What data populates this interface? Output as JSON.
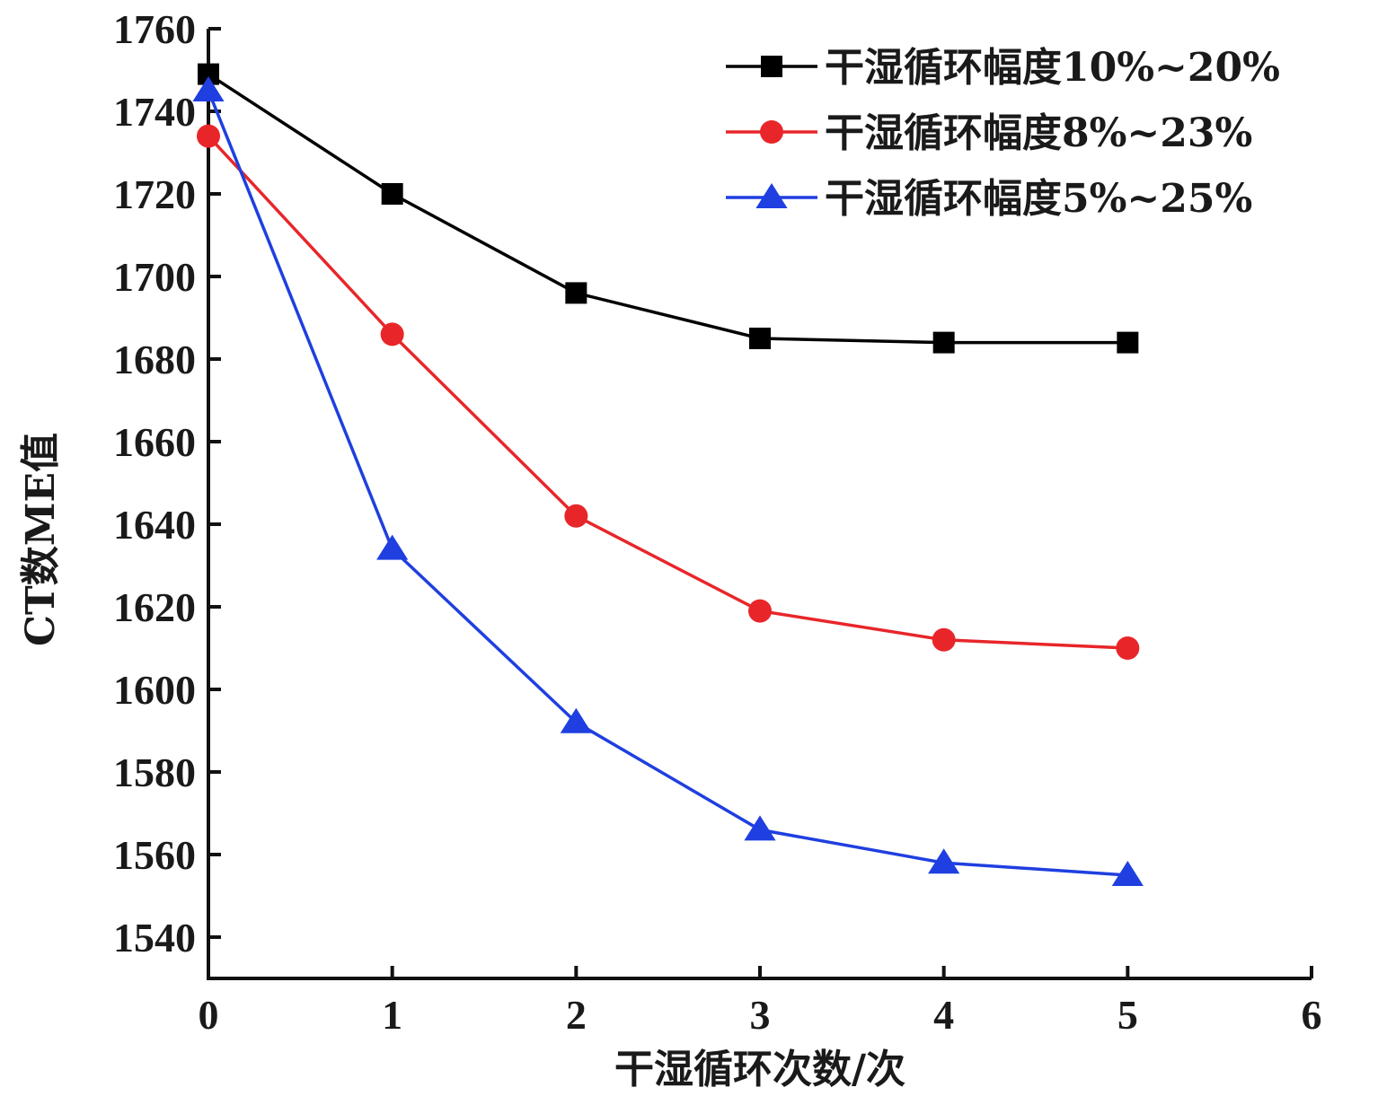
{
  "chart_data": {
    "type": "line",
    "xlabel": "干湿循环次数/次",
    "ylabel": "CT数ME值",
    "xlim": [
      0,
      6
    ],
    "ylim": [
      1530,
      1760
    ],
    "xticks": [
      "0",
      "1",
      "2",
      "3",
      "4",
      "5",
      "6"
    ],
    "yticks": [
      "1540",
      "1560",
      "1580",
      "1600",
      "1620",
      "1640",
      "1660",
      "1680",
      "1700",
      "1720",
      "1740",
      "1760"
    ],
    "grid": false,
    "legend_position": "top-right",
    "x": [
      0,
      1,
      2,
      3,
      4,
      5
    ],
    "series": [
      {
        "name": "干湿循环幅度10%~20%",
        "marker": "square",
        "color": "#000000",
        "values": [
          1749,
          1720,
          1696,
          1685,
          1684,
          1684
        ]
      },
      {
        "name": "干湿循环幅度8%~23%",
        "marker": "circle",
        "color": "#e8262a",
        "values": [
          1734,
          1686,
          1642,
          1619,
          1612,
          1610
        ]
      },
      {
        "name": "干湿循环幅度5%~25%",
        "marker": "triangle",
        "color": "#1f3fe0",
        "values": [
          1745,
          1634,
          1592,
          1566,
          1558,
          1555
        ]
      }
    ]
  }
}
